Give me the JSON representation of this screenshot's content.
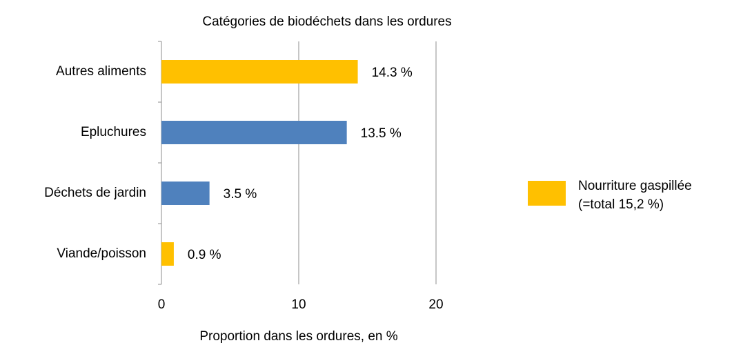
{
  "chart_data": {
    "type": "hbar",
    "title": "Catégories de biodéchets dans les ordures",
    "xlabel": "Proportion dans les ordures, en %",
    "categories": [
      "Autres aliments",
      "Epluchures",
      "Déchets de jardin",
      "Viande/poisson"
    ],
    "values": [
      14.3,
      13.5,
      3.5,
      0.9
    ],
    "value_labels": [
      "14.3 %",
      "13.5 %",
      "3.5 %",
      "0.9 %"
    ],
    "colors": [
      "#ffc000",
      "#4f81bd",
      "#4f81bd",
      "#ffc000"
    ],
    "xlim": [
      0,
      20
    ],
    "xticks": [
      0,
      10,
      20
    ],
    "grid": true,
    "legend": {
      "position": "right",
      "color": "#ffc000",
      "lines": [
        "Nourriture gaspillée",
        "(=total 15,2 %)"
      ]
    }
  }
}
